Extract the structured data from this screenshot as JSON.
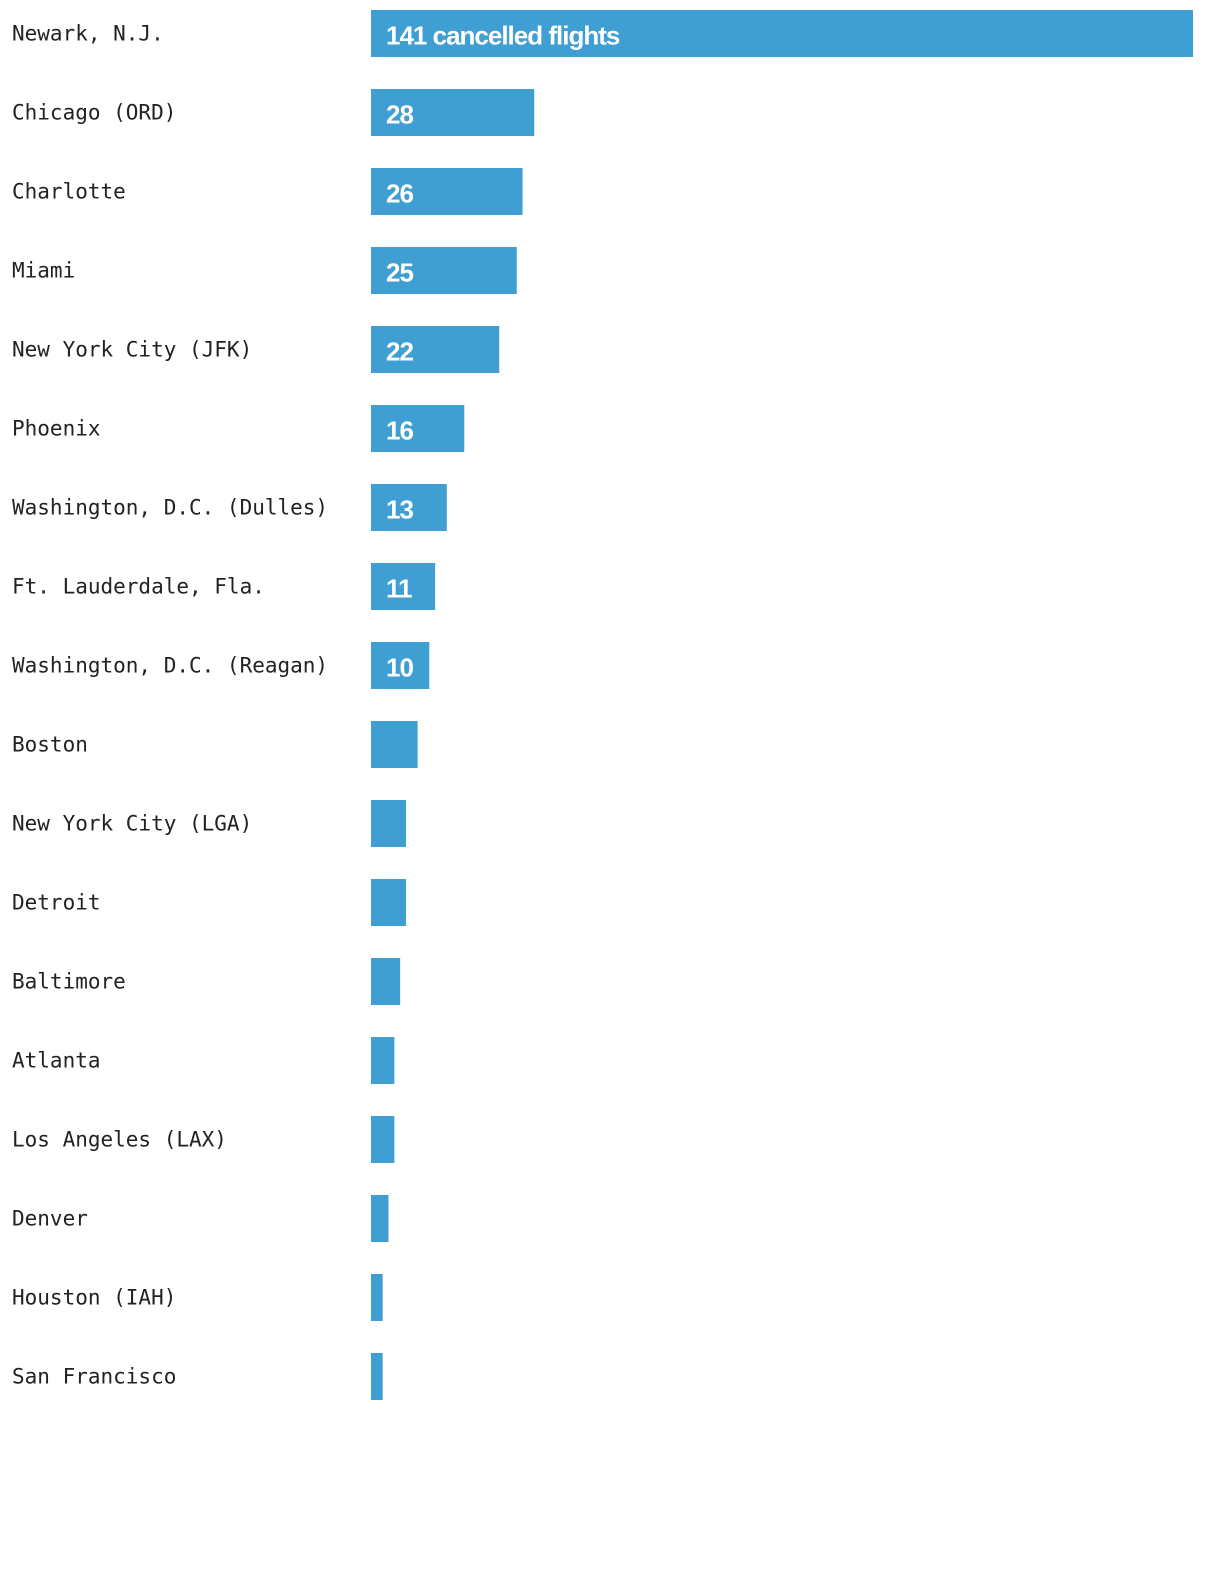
{
  "chart_data": {
    "type": "bar",
    "orientation": "horizontal",
    "bar_color": "#3f9fd2",
    "label_color": "#ffffff",
    "text_color": "#222222",
    "categories": [
      "Newark, N.J.",
      "Chicago (ORD)",
      "Charlotte",
      "Miami",
      "New York City (JFK)",
      "Phoenix",
      "Washington, D.C. (Dulles)",
      "Ft. Lauderdale, Fla.",
      "Washington, D.C. (Reagan)",
      "Boston",
      "New York City (LGA)",
      "Detroit",
      "Baltimore",
      "Atlanta",
      "Los Angeles (LAX)",
      "Denver",
      "Houston (IAH)",
      "San Francisco"
    ],
    "values": [
      141,
      28,
      26,
      25,
      22,
      16,
      13,
      11,
      10,
      8,
      6,
      6,
      5,
      4,
      4,
      3,
      2,
      2
    ],
    "data_labels": [
      "141 cancelled flights",
      "28",
      "26",
      "25",
      "22",
      "16",
      "13",
      "11",
      "10",
      "",
      "",
      "",
      "",
      "",
      "",
      "",
      "",
      ""
    ],
    "xlim": [
      0,
      141
    ],
    "grid": false,
    "legend": "none"
  }
}
